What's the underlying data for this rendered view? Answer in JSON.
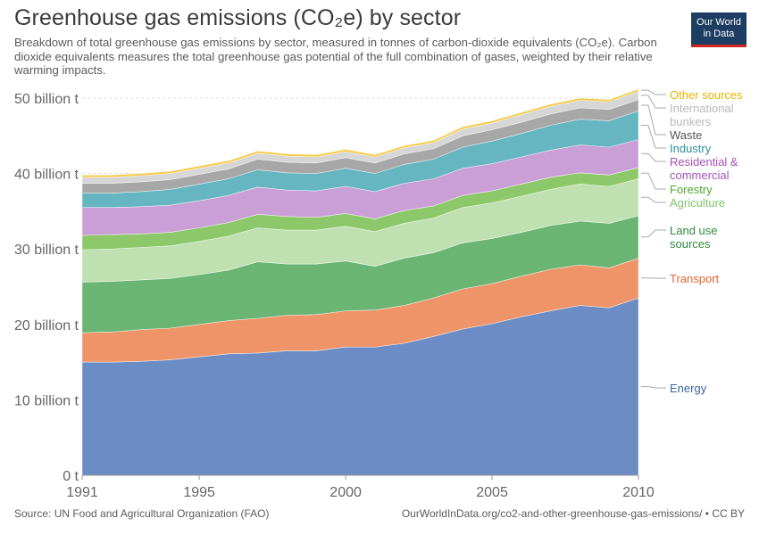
{
  "header": {
    "title": "Greenhouse gas emissions (CO₂e) by sector",
    "subtitle": "Breakdown of total greenhouse gas emissions by sector, measured in tonnes of carbon-dioxide equivalents (CO₂e). Carbon dioxide equivalents measures the total greenhouse gas potential of the full combination of gases, weighted by their relative warming impacts.",
    "logo_line1": "Our World",
    "logo_line2": "in Data"
  },
  "footer": {
    "source": "Source: UN Food and Agricultural Organization (FAO)",
    "url": "OurWorldInData.org/co2-and-other-greenhouse-gas-emissions/ • CC BY"
  },
  "colors": {
    "logo_bg": "#1d3d63",
    "logo_accent": "#ce261e"
  },
  "chart_data": {
    "type": "area",
    "stacked": true,
    "x": [
      1991,
      1992,
      1993,
      1994,
      1995,
      1996,
      1997,
      1998,
      1999,
      2000,
      2001,
      2002,
      2003,
      2004,
      2005,
      2006,
      2007,
      2008,
      2009,
      2010
    ],
    "ylim": [
      0,
      50000000000
    ],
    "y_ticks": [
      0,
      10000000000,
      20000000000,
      30000000000,
      40000000000,
      50000000000
    ],
    "y_tick_labels": [
      "0 t",
      "10 billion t",
      "20 billion t",
      "30 billion t",
      "40 billion t",
      "50 billion t"
    ],
    "x_ticks": [
      1991,
      1995,
      2000,
      2005,
      2010
    ],
    "x_tick_labels": [
      "1991",
      "1995",
      "2000",
      "2005",
      "2010"
    ],
    "grid": "horizontal dashed",
    "legend_placement": "right, aligned to series",
    "series": [
      {
        "name": "Energy",
        "color": "#6b8cc4",
        "values": [
          15.0,
          15.0,
          15.1,
          15.3,
          15.7,
          16.1,
          16.2,
          16.5,
          16.5,
          17.0,
          17.0,
          17.5,
          18.4,
          19.4,
          20.1,
          21.0,
          21.8,
          22.5,
          22.2,
          23.5
        ]
      },
      {
        "name": "Transport",
        "color": "#ef9468",
        "values": [
          3.9,
          4.0,
          4.2,
          4.2,
          4.3,
          4.4,
          4.6,
          4.7,
          4.8,
          4.8,
          4.9,
          5.0,
          5.1,
          5.3,
          5.3,
          5.4,
          5.5,
          5.4,
          5.3,
          5.3
        ]
      },
      {
        "name": "Land use sources",
        "color": "#6ab474",
        "values": [
          6.7,
          6.7,
          6.6,
          6.6,
          6.6,
          6.7,
          7.5,
          6.8,
          6.7,
          6.6,
          5.8,
          6.3,
          6.0,
          6.1,
          6.0,
          5.8,
          5.8,
          5.8,
          5.9,
          5.6
        ]
      },
      {
        "name": "Agriculture",
        "color": "#bfe0b0",
        "values": [
          4.3,
          4.3,
          4.3,
          4.3,
          4.4,
          4.5,
          4.5,
          4.5,
          4.5,
          4.6,
          4.6,
          4.6,
          4.6,
          4.7,
          4.7,
          4.8,
          4.8,
          4.9,
          4.9,
          4.9
        ]
      },
      {
        "name": "Forestry",
        "color": "#8cc86a",
        "values": [
          1.9,
          1.9,
          1.8,
          1.8,
          1.8,
          1.8,
          1.8,
          1.8,
          1.7,
          1.7,
          1.7,
          1.7,
          1.6,
          1.6,
          1.6,
          1.6,
          1.6,
          1.5,
          1.5,
          1.5
        ]
      },
      {
        "name": "Residential & commercial",
        "color": "#c99fd6",
        "values": [
          3.7,
          3.6,
          3.6,
          3.6,
          3.6,
          3.6,
          3.6,
          3.5,
          3.5,
          3.6,
          3.6,
          3.6,
          3.6,
          3.6,
          3.6,
          3.6,
          3.6,
          3.7,
          3.7,
          3.7
        ]
      },
      {
        "name": "Industry",
        "color": "#65b6c1",
        "values": [
          1.9,
          1.9,
          2.0,
          2.1,
          2.2,
          2.2,
          2.3,
          2.3,
          2.3,
          2.4,
          2.4,
          2.5,
          2.6,
          2.8,
          3.0,
          3.1,
          3.3,
          3.4,
          3.5,
          3.8
        ]
      },
      {
        "name": "Waste",
        "color": "#a7a7a7",
        "values": [
          1.3,
          1.3,
          1.3,
          1.3,
          1.3,
          1.3,
          1.4,
          1.4,
          1.4,
          1.4,
          1.4,
          1.4,
          1.4,
          1.5,
          1.5,
          1.5,
          1.5,
          1.5,
          1.5,
          1.5
        ]
      },
      {
        "name": "International bunkers",
        "color": "#d6d6d6",
        "values": [
          0.8,
          0.8,
          0.8,
          0.8,
          0.8,
          0.8,
          0.8,
          0.8,
          0.8,
          0.8,
          0.8,
          0.8,
          0.8,
          0.9,
          0.9,
          1.0,
          1.0,
          1.0,
          1.0,
          1.1
        ]
      },
      {
        "name": "Other sources",
        "color": "#f6cc4a",
        "values": [
          0.3,
          0.3,
          0.3,
          0.3,
          0.3,
          0.3,
          0.3,
          0.3,
          0.3,
          0.3,
          0.3,
          0.3,
          0.3,
          0.3,
          0.3,
          0.3,
          0.3,
          0.3,
          0.3,
          0.3
        ]
      }
    ],
    "value_unit_multiplier": 1000000000
  },
  "legend": {
    "labels": [
      {
        "lines": [
          "Other sources"
        ],
        "color": "#e7b400"
      },
      {
        "lines": [
          "International",
          "bunkers"
        ],
        "color": "#b8b8b8"
      },
      {
        "lines": [
          "Waste"
        ],
        "color": "#555555"
      },
      {
        "lines": [
          "Industry"
        ],
        "color": "#2f8f9d"
      },
      {
        "lines": [
          "Residential &",
          "commercial"
        ],
        "color": "#a450b5"
      },
      {
        "lines": [
          "Forestry"
        ],
        "color": "#4fa82c"
      },
      {
        "lines": [
          "Agriculture"
        ],
        "color": "#7fc36c"
      },
      {
        "lines": [
          "Land use",
          "sources"
        ],
        "color": "#2e8c3a"
      },
      {
        "lines": [
          "Transport"
        ],
        "color": "#e0642f"
      },
      {
        "lines": [
          "Energy"
        ],
        "color": "#3b62a5"
      }
    ]
  }
}
